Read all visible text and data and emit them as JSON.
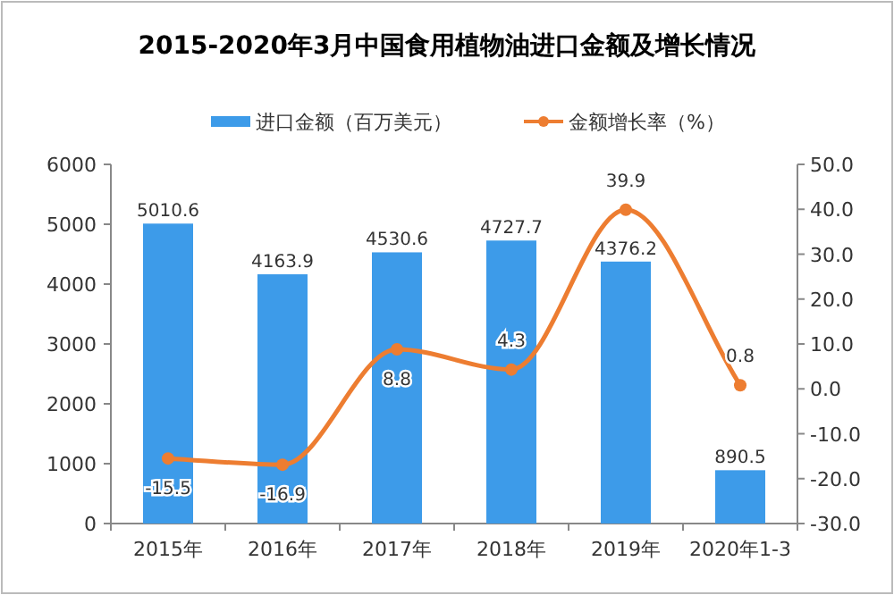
{
  "chart_data": {
    "type": "bar",
    "title": "2015-2020年3月中国食用植物油进口金额及增长情况",
    "categories": [
      "2015年",
      "2016年",
      "2017年",
      "2018年",
      "2019年",
      "2020年1-3"
    ],
    "series": [
      {
        "name": "进口金额（百万美元）",
        "color": "#3d9be9",
        "values": [
          5010.6,
          4163.9,
          4530.6,
          4727.7,
          4376.2,
          890.5
        ]
      },
      {
        "name": "金额增长率（%）",
        "type": "line",
        "axis": "y2",
        "color": "#ed7d31",
        "marker": "circle",
        "values": [
          -15.5,
          -16.9,
          8.8,
          4.3,
          39.9,
          0.8
        ]
      }
    ],
    "data_labels": true,
    "ylim": [
      0,
      6000
    ],
    "yticks": [
      0,
      1000,
      2000,
      3000,
      4000,
      5000,
      6000
    ],
    "y2lim": [
      -30,
      50
    ],
    "y2ticks": [
      {
        "value": -30,
        "label": "-30.0"
      },
      {
        "value": -20,
        "label": "-20.0"
      },
      {
        "value": -10,
        "label": "-10.0"
      },
      {
        "value": 0,
        "label": "0.0"
      },
      {
        "value": 10,
        "label": "10.0"
      },
      {
        "value": 20,
        "label": "20.0"
      },
      {
        "value": 30,
        "label": "30.0"
      },
      {
        "value": 40,
        "label": "40.0"
      },
      {
        "value": 50,
        "label": "50.0"
      }
    ],
    "legend": "top",
    "grid": false
  }
}
